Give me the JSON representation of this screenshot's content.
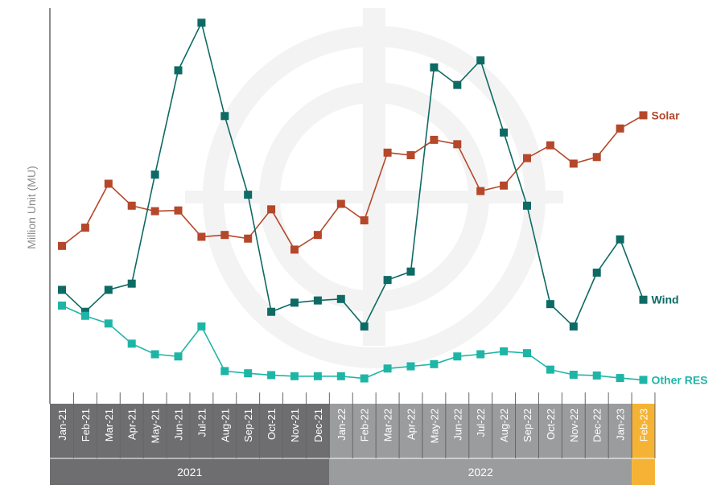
{
  "chart_data": {
    "type": "line",
    "title": "",
    "xlabel": "",
    "ylabel": "Million Unit (MU)",
    "y_ticks_shown": false,
    "ylim": [
      0,
      100
    ],
    "grid": false,
    "legend": "series labels at line ends (right)",
    "categories": [
      "Jan-21",
      "Feb-21",
      "Mar-21",
      "Apr-21",
      "May-21",
      "Jun-21",
      "Jul-21",
      "Aug-21",
      "Sep-21",
      "Oct-21",
      "Nov-21",
      "Dec-21",
      "Jan-22",
      "Feb-22",
      "Mar-22",
      "Apr-22",
      "May-22",
      "Jun-22",
      "Jul-22",
      "Aug-22",
      "Sep-22",
      "Oct-22",
      "Nov-22",
      "Dec-22",
      "Jan-23",
      "Feb-23"
    ],
    "groups": [
      {
        "label": "2021",
        "start": 0,
        "end": 11,
        "color": "#6e6e70"
      },
      {
        "label": "2022",
        "start": 12,
        "end": 24,
        "color": "#9b9c9e"
      },
      {
        "label": "",
        "start": 25,
        "end": 25,
        "color": "#f5b335"
      }
    ],
    "series": [
      {
        "name": "Solar",
        "color": "#b5472a",
        "values": [
          38.5,
          43.5,
          55.5,
          49.5,
          48,
          48.2,
          41,
          41.5,
          40.5,
          48.5,
          37.5,
          41.5,
          50,
          45.5,
          64,
          63.3,
          67.5,
          66.3,
          53.5,
          55,
          62.5,
          66,
          61,
          62.8,
          70.6,
          74.2
        ]
      },
      {
        "name": "Wind",
        "color": "#0e6a64",
        "values": [
          26.5,
          20.5,
          26.5,
          28.2,
          58,
          86.5,
          99.5,
          74,
          52.5,
          20.5,
          23,
          23.6,
          24,
          16.5,
          29.2,
          31.5,
          87.3,
          82.5,
          89.2,
          69.5,
          49.5,
          22.6,
          16.5,
          31.2,
          40.3,
          23.8
        ]
      },
      {
        "name": "Other RES",
        "color": "#1eb5a6",
        "values": [
          22.2,
          19.4,
          17.3,
          11.8,
          8.9,
          8.3,
          16.5,
          4.3,
          3.7,
          3.2,
          2.9,
          2.9,
          2.9,
          2.3,
          5,
          5.6,
          6.2,
          8.3,
          8.9,
          9.7,
          9.2,
          4.7,
          3.3,
          3.1,
          2.4,
          1.9
        ]
      }
    ]
  }
}
